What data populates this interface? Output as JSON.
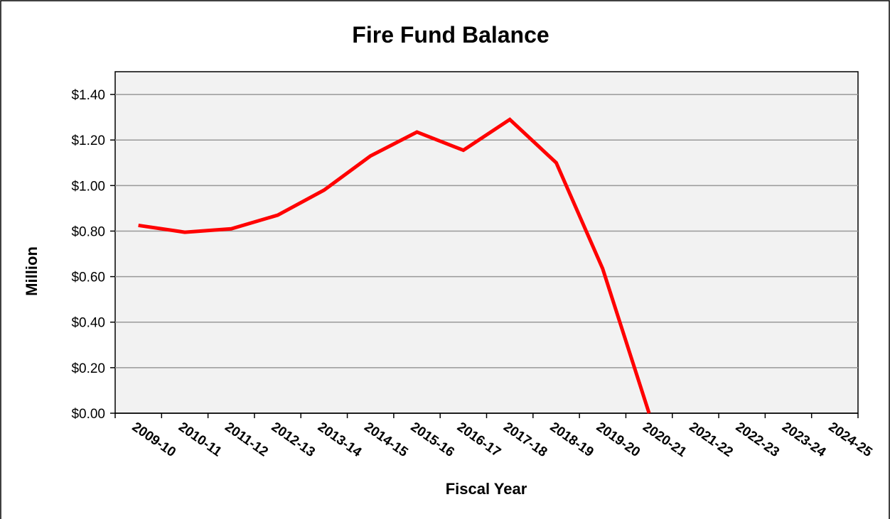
{
  "chart_data": {
    "type": "line",
    "title": "Fire Fund Balance",
    "xlabel": "Fiscal Year",
    "ylabel": "Million",
    "categories": [
      "2009-10",
      "2010-11",
      "2011-12",
      "2012-13",
      "2013-14",
      "2014-15",
      "2015-16",
      "2016-17",
      "2017-18",
      "2018-19",
      "2019-20",
      "2020-21",
      "2021-22",
      "2022-23",
      "2023-24",
      "2024-25"
    ],
    "series": [
      {
        "values": [
          0.825,
          0.795,
          0.81,
          0.87,
          0.98,
          1.13,
          1.235,
          1.155,
          1.29,
          1.1,
          0.635,
          0.0,
          null,
          null,
          null,
          null
        ],
        "color": "#ff0000"
      }
    ],
    "ylim": [
      0,
      1.4
    ],
    "yticks": [
      0,
      0.2,
      0.4,
      0.6,
      0.8,
      1.0,
      1.2,
      1.4
    ],
    "ytick_labels": [
      "$0.00",
      "$0.20",
      "$0.40",
      "$0.60",
      "$0.80",
      "$1.00",
      "$1.20",
      "$1.40"
    ],
    "grid": true,
    "plot_background": "#f2f2f2",
    "gridline_color": "#999999"
  }
}
